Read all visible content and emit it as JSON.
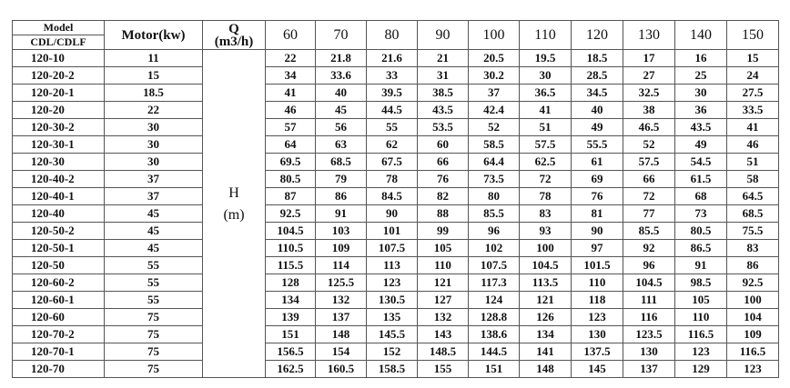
{
  "header": {
    "model_line1": "Model",
    "model_line2": "CDL/CDLF",
    "motor": "Motor(kw)",
    "q_label": "Q",
    "q_unit": "(m3/h)",
    "flows": [
      "60",
      "70",
      "80",
      "90",
      "100",
      "110",
      "120",
      "130",
      "140",
      "150"
    ],
    "h_label": "H",
    "h_unit": "(m)"
  },
  "rows": [
    {
      "model": "120-10",
      "motor": "11",
      "head": [
        "22",
        "21.8",
        "21.6",
        "21",
        "20.5",
        "19.5",
        "18.5",
        "17",
        "16",
        "15"
      ]
    },
    {
      "model": "120-20-2",
      "motor": "15",
      "head": [
        "34",
        "33.6",
        "33",
        "31",
        "30.2",
        "30",
        "28.5",
        "27",
        "25",
        "24"
      ]
    },
    {
      "model": "120-20-1",
      "motor": "18.5",
      "head": [
        "41",
        "40",
        "39.5",
        "38.5",
        "37",
        "36.5",
        "34.5",
        "32.5",
        "30",
        "27.5"
      ]
    },
    {
      "model": "120-20",
      "motor": "22",
      "head": [
        "46",
        "45",
        "44.5",
        "43.5",
        "42.4",
        "41",
        "40",
        "38",
        "36",
        "33.5"
      ]
    },
    {
      "model": "120-30-2",
      "motor": "30",
      "head": [
        "57",
        "56",
        "55",
        "53.5",
        "52",
        "51",
        "49",
        "46.5",
        "43.5",
        "41"
      ]
    },
    {
      "model": "120-30-1",
      "motor": "30",
      "head": [
        "64",
        "63",
        "62",
        "60",
        "58.5",
        "57.5",
        "55.5",
        "52",
        "49",
        "46"
      ]
    },
    {
      "model": "120-30",
      "motor": "30",
      "head": [
        "69.5",
        "68.5",
        "67.5",
        "66",
        "64.4",
        "62.5",
        "61",
        "57.5",
        "54.5",
        "51"
      ]
    },
    {
      "model": "120-40-2",
      "motor": "37",
      "head": [
        "80.5",
        "79",
        "78",
        "76",
        "73.5",
        "72",
        "69",
        "66",
        "61.5",
        "58"
      ]
    },
    {
      "model": "120-40-1",
      "motor": "37",
      "head": [
        "87",
        "86",
        "84.5",
        "82",
        "80",
        "78",
        "76",
        "72",
        "68",
        "64.5"
      ]
    },
    {
      "model": "120-40",
      "motor": "45",
      "head": [
        "92.5",
        "91",
        "90",
        "88",
        "85.5",
        "83",
        "81",
        "77",
        "73",
        "68.5"
      ]
    },
    {
      "model": "120-50-2",
      "motor": "45",
      "head": [
        "104.5",
        "103",
        "101",
        "99",
        "96",
        "93",
        "90",
        "85.5",
        "80.5",
        "75.5"
      ]
    },
    {
      "model": "120-50-1",
      "motor": "45",
      "head": [
        "110.5",
        "109",
        "107.5",
        "105",
        "102",
        "100",
        "97",
        "92",
        "86.5",
        "83"
      ]
    },
    {
      "model": "120-50",
      "motor": "55",
      "head": [
        "115.5",
        "114",
        "113",
        "110",
        "107.5",
        "104.5",
        "101.5",
        "96",
        "91",
        "86"
      ]
    },
    {
      "model": "120-60-2",
      "motor": "55",
      "head": [
        "128",
        "125.5",
        "123",
        "121",
        "117.3",
        "113.5",
        "110",
        "104.5",
        "98.5",
        "92.5"
      ]
    },
    {
      "model": "120-60-1",
      "motor": "55",
      "head": [
        "134",
        "132",
        "130.5",
        "127",
        "124",
        "121",
        "118",
        "111",
        "105",
        "100"
      ]
    },
    {
      "model": "120-60",
      "motor": "75",
      "head": [
        "139",
        "137",
        "135",
        "132",
        "128.8",
        "126",
        "123",
        "116",
        "110",
        "104"
      ]
    },
    {
      "model": "120-70-2",
      "motor": "75",
      "head": [
        "151",
        "148",
        "145.5",
        "143",
        "138.6",
        "134",
        "130",
        "123.5",
        "116.5",
        "109"
      ]
    },
    {
      "model": "120-70-1",
      "motor": "75",
      "head": [
        "156.5",
        "154",
        "152",
        "148.5",
        "144.5",
        "141",
        "137.5",
        "130",
        "123",
        "116.5"
      ]
    },
    {
      "model": "120-70",
      "motor": "75",
      "head": [
        "162.5",
        "160.5",
        "158.5",
        "155",
        "151",
        "148",
        "145",
        "137",
        "129",
        "123"
      ]
    }
  ]
}
